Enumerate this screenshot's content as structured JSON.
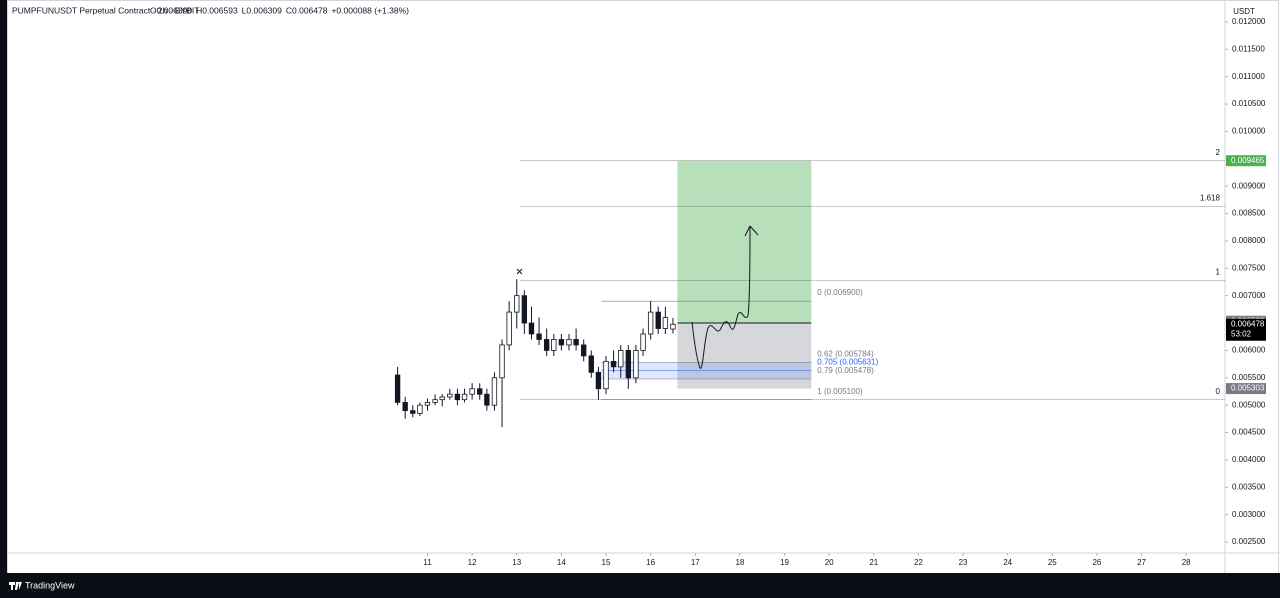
{
  "chart_data": {
    "type": "candlestick",
    "title": "PUMPFUNUSDT Perpetual Contract · 2h · BYBIT",
    "ohlc_labels": [
      "O0.006390",
      "H0.006593",
      "L0.006309",
      "C0.006478",
      "+0.000088 (+1.38%)"
    ],
    "currency": "USDT",
    "x": [
      10.33,
      10.5,
      10.67,
      10.83,
      11.0,
      11.17,
      11.33,
      11.5,
      11.67,
      11.83,
      12.0,
      12.17,
      12.33,
      12.5,
      12.67,
      12.83,
      13.0,
      13.17,
      13.33,
      13.5,
      13.67,
      13.83,
      14.0,
      14.17,
      14.33,
      14.5,
      14.67,
      14.83,
      15.0,
      15.17,
      15.33,
      15.5,
      15.67,
      15.83,
      16.0,
      16.17,
      16.33,
      16.5
    ],
    "open": [
      0.00555,
      0.00505,
      0.0049,
      0.00485,
      0.005,
      0.00505,
      0.0051,
      0.00515,
      0.0052,
      0.0051,
      0.0052,
      0.0053,
      0.0052,
      0.005,
      0.0055,
      0.0061,
      0.0067,
      0.007,
      0.0065,
      0.0063,
      0.0062,
      0.006,
      0.0062,
      0.0061,
      0.0062,
      0.0061,
      0.0059,
      0.0056,
      0.0053,
      0.0058,
      0.0057,
      0.006,
      0.0055,
      0.006,
      0.0063,
      0.0067,
      0.0064,
      0.00639
    ],
    "high": [
      0.0057,
      0.00515,
      0.005,
      0.00505,
      0.00512,
      0.0052,
      0.0052,
      0.0053,
      0.0053,
      0.0053,
      0.0054,
      0.0054,
      0.0053,
      0.0056,
      0.0062,
      0.0069,
      0.0073,
      0.0071,
      0.0068,
      0.0066,
      0.0064,
      0.0063,
      0.0063,
      0.0063,
      0.0064,
      0.0062,
      0.006,
      0.0057,
      0.0059,
      0.006,
      0.0061,
      0.0061,
      0.0061,
      0.0064,
      0.0069,
      0.0068,
      0.0068,
      0.006593
    ],
    "low": [
      0.005,
      0.00475,
      0.00478,
      0.0048,
      0.0049,
      0.005,
      0.00498,
      0.0051,
      0.005,
      0.00505,
      0.0051,
      0.0051,
      0.0049,
      0.0049,
      0.0046,
      0.006,
      0.0064,
      0.0063,
      0.0062,
      0.0061,
      0.0059,
      0.0059,
      0.006,
      0.006,
      0.006,
      0.0058,
      0.0055,
      0.0051,
      0.0052,
      0.0056,
      0.0055,
      0.0053,
      0.0054,
      0.0059,
      0.0062,
      0.0063,
      0.0063,
      0.006309
    ],
    "close": [
      0.00505,
      0.0049,
      0.00485,
      0.005,
      0.00505,
      0.0051,
      0.00515,
      0.0052,
      0.0051,
      0.0052,
      0.0053,
      0.0052,
      0.005,
      0.0055,
      0.0061,
      0.0067,
      0.007,
      0.0065,
      0.0063,
      0.0062,
      0.006,
      0.0062,
      0.0061,
      0.0062,
      0.0061,
      0.0059,
      0.0056,
      0.0053,
      0.0058,
      0.0057,
      0.006,
      0.0055,
      0.006,
      0.0063,
      0.0067,
      0.0064,
      0.0066,
      0.006478
    ],
    "xlim": [
      1.6,
      28.87
    ],
    "xticks": [
      11,
      12,
      13,
      14,
      15,
      16,
      17,
      18,
      19,
      20,
      21,
      22,
      23,
      24,
      25,
      26,
      27,
      28
    ],
    "ylim": [
      0.0023,
      0.0124
    ],
    "yticks": [
      {
        "value": 0.0025,
        "label": "0.002500"
      },
      {
        "value": 0.003,
        "label": "0.003000"
      },
      {
        "value": 0.0035,
        "label": "0.003500"
      },
      {
        "value": 0.004,
        "label": "0.004000"
      },
      {
        "value": 0.0045,
        "label": "0.004500"
      },
      {
        "value": 0.005,
        "label": "0.005000"
      },
      {
        "value": 0.0055,
        "label": "0.005500"
      },
      {
        "value": 0.006,
        "label": "0.006000"
      },
      {
        "value": 0.007,
        "label": "0.007000"
      },
      {
        "value": 0.0075,
        "label": "0.007500"
      },
      {
        "value": 0.008,
        "label": "0.008000"
      },
      {
        "value": 0.0085,
        "label": "0.008500"
      },
      {
        "value": 0.009,
        "label": "0.009000"
      },
      {
        "value": 0.01,
        "label": "0.010000"
      },
      {
        "value": 0.0105,
        "label": "0.010500"
      },
      {
        "value": 0.011,
        "label": "0.011000"
      },
      {
        "value": 0.0115,
        "label": "0.011500"
      },
      {
        "value": 0.012,
        "label": "0.012000"
      }
    ],
    "fib_extension": {
      "ratios": [
        2,
        1.618,
        1,
        0
      ],
      "prices": [
        0.009465,
        0.008627,
        0.00728,
        0.0051
      ],
      "x_range": [
        13.08,
        28.87
      ]
    },
    "fib_retracement": {
      "labels": [
        "0 (0.006900)",
        "0.62 (0.005784)",
        "0.705 (0.005631)",
        "0.79 (0.005478)",
        "1 (0.005100)"
      ],
      "prices": [
        0.0069,
        0.005784,
        0.005631,
        0.005478,
        0.0051
      ],
      "x_range": [
        14.9,
        19.6
      ]
    },
    "position": {
      "entry": 0.0065,
      "target": 0.009465,
      "stop": 0.005303,
      "x_range": [
        16.6,
        19.6
      ]
    },
    "price_tags": [
      {
        "value": 0.009465,
        "label": "0.009465",
        "color": "#4caf50"
      },
      {
        "value": 0.006533,
        "label": "0.006533",
        "color": "#787b86"
      },
      {
        "value": 0.006478,
        "label": "0.006478",
        "color": "#000000"
      },
      {
        "value": 0.005303,
        "label": "0.005303",
        "color": "#787b86"
      }
    ],
    "countdown": "53:02",
    "brand": "TradingView"
  }
}
